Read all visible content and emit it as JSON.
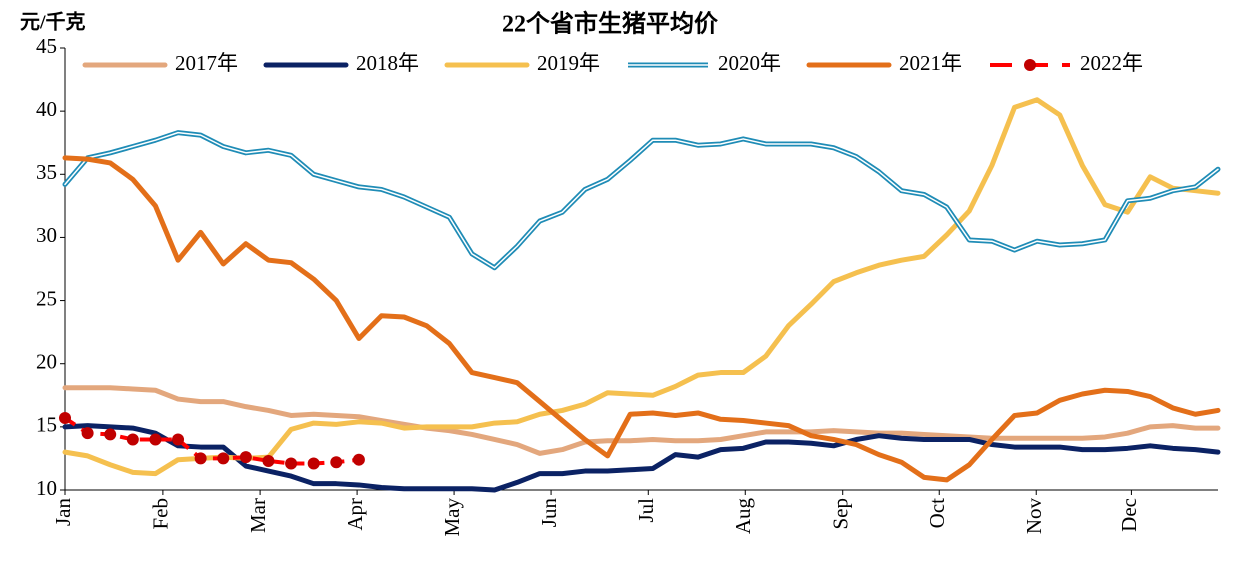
{
  "chart_data": {
    "type": "line",
    "title": "22个省市生猪平均价",
    "ylabel": "元/千克",
    "x": [
      1,
      2,
      3,
      4,
      5,
      6,
      7,
      8,
      9,
      10,
      11,
      12,
      13,
      14,
      15,
      16,
      17,
      18,
      19,
      20,
      21,
      22,
      23,
      24,
      25,
      26,
      27,
      28,
      29,
      30,
      31,
      32,
      33,
      34,
      35,
      36,
      37,
      38,
      39,
      40,
      41,
      42,
      43,
      44,
      45,
      46,
      47,
      48,
      49,
      50,
      51,
      52
    ],
    "xlim": [
      1,
      52
    ],
    "xticks": [
      {
        "value": 1,
        "label": "Jan"
      },
      {
        "value": 5.33,
        "label": "Feb"
      },
      {
        "value": 9.63,
        "label": "Mar"
      },
      {
        "value": 13.92,
        "label": "Apr"
      },
      {
        "value": 18.21,
        "label": "May"
      },
      {
        "value": 22.5,
        "label": "Jun"
      },
      {
        "value": 26.8,
        "label": "Jul"
      },
      {
        "value": 31.09,
        "label": "Aug"
      },
      {
        "value": 35.4,
        "label": "Sep"
      },
      {
        "value": 39.67,
        "label": "Oct"
      },
      {
        "value": 43.96,
        "label": "Nov"
      },
      {
        "value": 48.17,
        "label": "Dec"
      }
    ],
    "ylim": [
      10,
      45
    ],
    "yticks": [
      10,
      15,
      20,
      25,
      30,
      35,
      40,
      45
    ],
    "grid": false,
    "legend": "top",
    "series": [
      {
        "name": "2017年",
        "color": "#e3a77d",
        "style": "solid",
        "values": [
          18.1,
          18.1,
          18.1,
          18.0,
          17.9,
          17.2,
          17.0,
          17.0,
          16.6,
          16.3,
          15.9,
          16.0,
          15.9,
          15.8,
          15.5,
          15.2,
          14.9,
          14.7,
          14.4,
          14.0,
          13.6,
          12.9,
          13.2,
          13.8,
          13.9,
          13.9,
          14.0,
          13.9,
          13.9,
          14.0,
          14.3,
          14.6,
          14.6,
          14.6,
          14.7,
          14.6,
          14.5,
          14.5,
          14.4,
          14.3,
          14.2,
          14.1,
          14.1,
          14.1,
          14.1,
          14.1,
          14.2,
          14.5,
          15.0,
          15.1,
          14.9,
          14.9
        ]
      },
      {
        "name": "2018年",
        "color": "#0b2264",
        "style": "solid",
        "values": [
          15.0,
          15.1,
          15.0,
          14.9,
          14.5,
          13.5,
          13.4,
          13.4,
          11.9,
          11.5,
          11.1,
          10.5,
          10.5,
          10.4,
          10.2,
          10.1,
          10.1,
          10.1,
          10.1,
          10.0,
          10.6,
          11.3,
          11.3,
          11.5,
          11.5,
          11.6,
          11.7,
          12.8,
          12.6,
          13.2,
          13.3,
          13.8,
          13.8,
          13.7,
          13.5,
          14.0,
          14.3,
          14.1,
          14.0,
          14.0,
          14.0,
          13.6,
          13.4,
          13.4,
          13.4,
          13.2,
          13.2,
          13.3,
          13.5,
          13.3,
          13.2,
          13.0
        ]
      },
      {
        "name": "2019年",
        "color": "#f5c04f",
        "style": "solid",
        "values": [
          13.0,
          12.7,
          12.0,
          11.4,
          11.3,
          12.4,
          12.5,
          12.6,
          12.5,
          12.6,
          14.8,
          15.3,
          15.2,
          15.4,
          15.3,
          14.9,
          15.0,
          15.0,
          15.0,
          15.3,
          15.4,
          16.0,
          16.3,
          16.8,
          17.7,
          17.6,
          17.5,
          18.2,
          19.1,
          19.3,
          19.3,
          20.6,
          23.0,
          24.7,
          26.5,
          27.2,
          27.8,
          28.2,
          28.5,
          30.2,
          32.1,
          35.7,
          40.3,
          40.9,
          39.7,
          35.7,
          32.6,
          32.0,
          34.8,
          33.9,
          33.7,
          33.5
        ]
      },
      {
        "name": "2020年",
        "color": "#1f8cb6",
        "style": "double",
        "values": [
          34.2,
          36.3,
          36.7,
          37.2,
          37.7,
          38.3,
          38.1,
          37.2,
          36.7,
          36.9,
          36.5,
          35.0,
          34.5,
          34.0,
          33.8,
          33.2,
          32.4,
          31.6,
          28.7,
          27.6,
          29.3,
          31.3,
          32.0,
          33.8,
          34.6,
          36.1,
          37.7,
          37.7,
          37.3,
          37.4,
          37.8,
          37.4,
          37.4,
          37.4,
          37.1,
          36.4,
          35.2,
          33.7,
          33.4,
          32.4,
          29.8,
          29.7,
          29.0,
          29.7,
          29.4,
          29.5,
          29.8,
          32.9,
          33.1,
          33.7,
          34.0,
          35.4
        ]
      },
      {
        "name": "2021年",
        "color": "#e36f19",
        "style": "solid",
        "values": [
          36.3,
          36.2,
          35.9,
          34.6,
          32.5,
          28.2,
          30.4,
          27.9,
          29.5,
          28.2,
          28.0,
          26.7,
          25.0,
          22.0,
          23.8,
          23.7,
          23.0,
          21.6,
          19.3,
          18.9,
          18.5,
          17.0,
          15.5,
          14.0,
          12.7,
          16.0,
          16.1,
          15.9,
          16.1,
          15.6,
          15.5,
          15.3,
          15.1,
          14.3,
          14.0,
          13.6,
          12.8,
          12.2,
          11.0,
          10.8,
          12.0,
          14.0,
          15.9,
          16.1,
          17.1,
          17.6,
          17.9,
          17.8,
          17.4,
          16.5,
          16.0,
          16.3
        ]
      },
      {
        "name": "2022年",
        "color": "#ff0000",
        "marker_color": "#c00000",
        "style": "dashed-marker",
        "values": [
          15.7,
          14.5,
          14.4,
          14.0,
          14.0,
          14.0,
          12.5,
          12.5,
          12.6,
          12.3,
          12.1,
          12.1,
          12.2,
          12.4,
          null,
          null,
          null,
          null,
          null,
          null,
          null,
          null,
          null,
          null,
          null,
          null,
          null,
          null,
          null,
          null,
          null,
          null,
          null,
          null,
          null,
          null,
          null,
          null,
          null,
          null,
          null,
          null,
          null,
          null,
          null,
          null,
          null,
          null,
          null,
          null,
          null,
          null
        ]
      }
    ]
  }
}
